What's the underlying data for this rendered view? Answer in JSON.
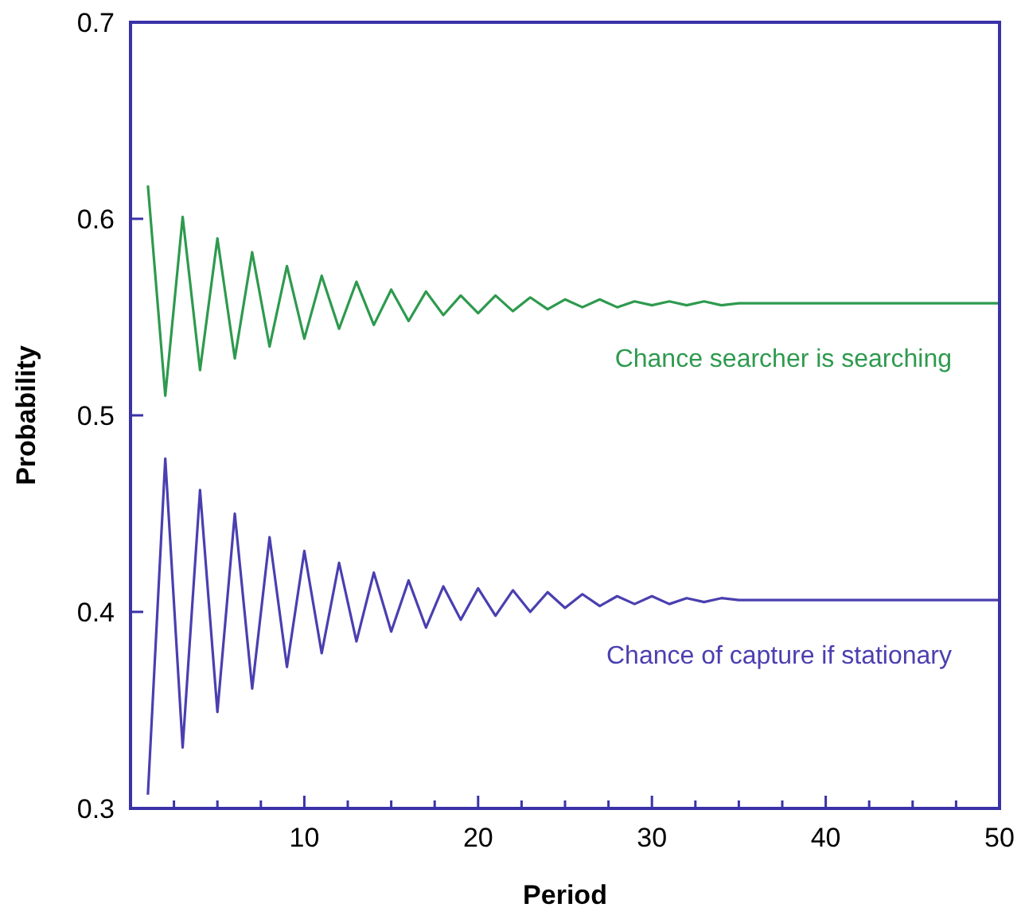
{
  "chart_data": {
    "type": "line",
    "xlabel": "Period",
    "ylabel": "Probability",
    "xlim": [
      0,
      50
    ],
    "ylim": [
      0.3,
      0.7
    ],
    "xticks": [
      {
        "value": 2.5,
        "label": null
      },
      {
        "value": 5,
        "label": null
      },
      {
        "value": 7.5,
        "label": null
      },
      10,
      {
        "value": 12.5,
        "label": null
      },
      {
        "value": 15,
        "label": null
      },
      {
        "value": 17.5,
        "label": null
      },
      20,
      {
        "value": 22.5,
        "label": null
      },
      {
        "value": 25,
        "label": null
      },
      {
        "value": 27.5,
        "label": null
      },
      30,
      {
        "value": 32.5,
        "label": null
      },
      {
        "value": 35,
        "label": null
      },
      {
        "value": 37.5,
        "label": null
      },
      40,
      {
        "value": 42.5,
        "label": null
      },
      {
        "value": 45,
        "label": null
      },
      {
        "value": 47.5,
        "label": null
      },
      50
    ],
    "yticks": [
      0.3,
      0.4,
      0.5,
      0.6,
      0.7
    ],
    "x": [
      1,
      2,
      3,
      4,
      5,
      6,
      7,
      8,
      9,
      10,
      11,
      12,
      13,
      14,
      15,
      16,
      17,
      18,
      19,
      20,
      21,
      22,
      23,
      24,
      25,
      26,
      27,
      28,
      29,
      30,
      31,
      32,
      33,
      34,
      35,
      36,
      37,
      38,
      39,
      40,
      41,
      42,
      43,
      44,
      45,
      46,
      47,
      48,
      49,
      50
    ],
    "grid": false,
    "marker": "none",
    "line_style": "solid",
    "series": [
      {
        "name": "Chance searcher is searching",
        "color": "#2e9a4e",
        "values": [
          0.617,
          0.51,
          0.601,
          0.523,
          0.59,
          0.529,
          0.583,
          0.535,
          0.576,
          0.539,
          0.571,
          0.544,
          0.568,
          0.546,
          0.564,
          0.548,
          0.563,
          0.551,
          0.561,
          0.552,
          0.561,
          0.553,
          0.56,
          0.554,
          0.559,
          0.555,
          0.559,
          0.555,
          0.558,
          0.556,
          0.558,
          0.556,
          0.558,
          0.556,
          0.557,
          0.557,
          0.557,
          0.557,
          0.557,
          0.557,
          0.557,
          0.557,
          0.557,
          0.557,
          0.557,
          0.557,
          0.557,
          0.557,
          0.557,
          0.557
        ]
      },
      {
        "name": "Chance of capture if stationary",
        "color": "#4a3fb0",
        "values": [
          0.307,
          0.478,
          0.331,
          0.462,
          0.349,
          0.45,
          0.361,
          0.438,
          0.372,
          0.431,
          0.379,
          0.425,
          0.385,
          0.42,
          0.39,
          0.416,
          0.392,
          0.413,
          0.396,
          0.412,
          0.398,
          0.411,
          0.4,
          0.41,
          0.402,
          0.409,
          0.403,
          0.408,
          0.404,
          0.408,
          0.404,
          0.407,
          0.405,
          0.407,
          0.406,
          0.406,
          0.406,
          0.406,
          0.406,
          0.406,
          0.406,
          0.406,
          0.406,
          0.406,
          0.406,
          0.406,
          0.406,
          0.406,
          0.406,
          0.406
        ]
      }
    ]
  }
}
